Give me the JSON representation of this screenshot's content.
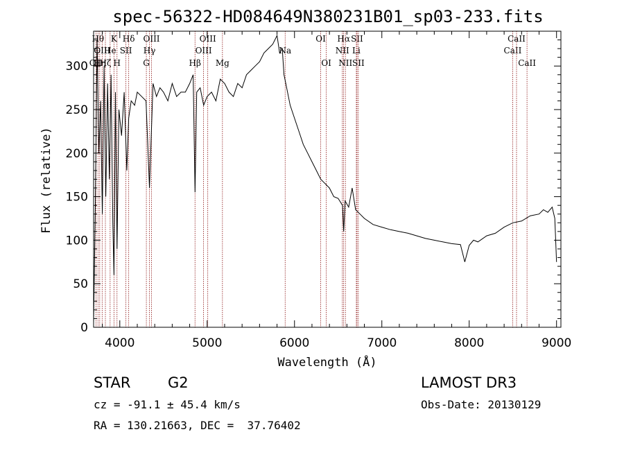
{
  "colors": {
    "spectrum": "#000000",
    "line_marker": "#8b1010",
    "axis": "#000000"
  },
  "chart_data": {
    "type": "line",
    "title": "spec-56322-HD084649N380231B01_sp03-233.fits",
    "xlabel": "Wavelength (Å)",
    "ylabel": "Flux (relative)",
    "xlim": [
      3700,
      9050
    ],
    "ylim": [
      0,
      340
    ],
    "xticks": [
      4000,
      5000,
      6000,
      7000,
      8000,
      9000
    ],
    "yticks": [
      0,
      50,
      100,
      150,
      200,
      250,
      300
    ],
    "series": [
      {
        "name": "spectrum",
        "x": [
          3700,
          3720,
          3740,
          3760,
          3780,
          3800,
          3820,
          3840,
          3860,
          3880,
          3900,
          3920,
          3933,
          3950,
          3968,
          3990,
          4020,
          4050,
          4080,
          4102,
          4130,
          4170,
          4200,
          4250,
          4300,
          4340,
          4380,
          4420,
          4460,
          4500,
          4550,
          4600,
          4650,
          4700,
          4750,
          4800,
          4840,
          4861,
          4880,
          4920,
          4960,
          5000,
          5050,
          5100,
          5150,
          5200,
          5250,
          5300,
          5350,
          5400,
          5450,
          5500,
          5550,
          5600,
          5650,
          5700,
          5750,
          5800,
          5830,
          5860,
          5880,
          5900,
          5950,
          6000,
          6050,
          6100,
          6150,
          6200,
          6250,
          6300,
          6350,
          6400,
          6450,
          6500,
          6550,
          6563,
          6580,
          6620,
          6660,
          6700,
          6750,
          6800,
          6900,
          7000,
          7100,
          7200,
          7300,
          7400,
          7500,
          7600,
          7700,
          7800,
          7900,
          7950,
          8000,
          8050,
          8100,
          8200,
          8300,
          8400,
          8500,
          8600,
          8700,
          8800,
          8850,
          8900,
          8950,
          8980,
          9000
        ],
        "y": [
          5,
          140,
          330,
          200,
          260,
          130,
          300,
          150,
          280,
          170,
          290,
          120,
          60,
          270,
          90,
          250,
          220,
          270,
          180,
          240,
          260,
          255,
          270,
          265,
          260,
          160,
          280,
          265,
          275,
          270,
          260,
          280,
          265,
          270,
          270,
          280,
          290,
          155,
          270,
          275,
          255,
          265,
          270,
          260,
          285,
          280,
          270,
          265,
          280,
          275,
          290,
          295,
          300,
          305,
          315,
          320,
          325,
          335,
          315,
          320,
          290,
          280,
          255,
          240,
          225,
          210,
          200,
          190,
          180,
          170,
          165,
          160,
          150,
          148,
          140,
          110,
          145,
          138,
          160,
          135,
          130,
          125,
          118,
          115,
          112,
          110,
          108,
          105,
          102,
          100,
          98,
          96,
          95,
          75,
          94,
          100,
          98,
          105,
          108,
          115,
          120,
          122,
          128,
          130,
          135,
          132,
          138,
          125,
          75
        ]
      }
    ],
    "spectral_lines": [
      {
        "wavelength": 3727,
        "label": "OII",
        "row": 2
      },
      {
        "wavelength": 3750,
        "label": "Hθ",
        "row": 0
      },
      {
        "wavelength": 3770,
        "label": "Hη",
        "row": 2
      },
      {
        "wavelength": 3798,
        "label": "OIII",
        "row": 1
      },
      {
        "wavelength": 3835,
        "label": "Hζ",
        "row": 2
      },
      {
        "wavelength": 3889,
        "label": "He",
        "row": 1
      },
      {
        "wavelength": 3933,
        "label": "K",
        "row": 0
      },
      {
        "wavelength": 3968,
        "label": "H",
        "row": 2
      },
      {
        "wavelength": 4070,
        "label": "SII",
        "row": 1
      },
      {
        "wavelength": 4102,
        "label": "Hδ",
        "row": 0
      },
      {
        "wavelength": 4304,
        "label": "G",
        "row": 2
      },
      {
        "wavelength": 4340,
        "label": "Hγ",
        "row": 1
      },
      {
        "wavelength": 4363,
        "label": "OIII",
        "row": 0
      },
      {
        "wavelength": 4861,
        "label": "Hβ",
        "row": 2
      },
      {
        "wavelength": 4959,
        "label": "OIII",
        "row": 1
      },
      {
        "wavelength": 5007,
        "label": "OIII",
        "row": 0
      },
      {
        "wavelength": 5175,
        "label": "Mg",
        "row": 2
      },
      {
        "wavelength": 5893,
        "label": "Na",
        "row": 1
      },
      {
        "wavelength": 6300,
        "label": "OI",
        "row": 0
      },
      {
        "wavelength": 6364,
        "label": "OI",
        "row": 2
      },
      {
        "wavelength": 6548,
        "label": "NII",
        "row": 1
      },
      {
        "wavelength": 6563,
        "label": "Hα",
        "row": 0
      },
      {
        "wavelength": 6583,
        "label": "NII",
        "row": 2
      },
      {
        "wavelength": 6708,
        "label": "Li",
        "row": 1
      },
      {
        "wavelength": 6716,
        "label": "SII",
        "row": 0
      },
      {
        "wavelength": 6731,
        "label": "SII",
        "row": 2
      },
      {
        "wavelength": 8498,
        "label": "CaII",
        "row": 1
      },
      {
        "wavelength": 8542,
        "label": "CaII",
        "row": 0
      },
      {
        "wavelength": 8662,
        "label": "CaII",
        "row": 2
      }
    ]
  },
  "info": {
    "class_label": "STAR",
    "subclass": "G2",
    "survey": "LAMOST DR3",
    "cz_text": "cz = -91.1 ± 45.4 km/s",
    "obs_date_text": "Obs-Date: 20130129",
    "coords_text": "RA = 130.21663, DEC =  37.76402"
  }
}
